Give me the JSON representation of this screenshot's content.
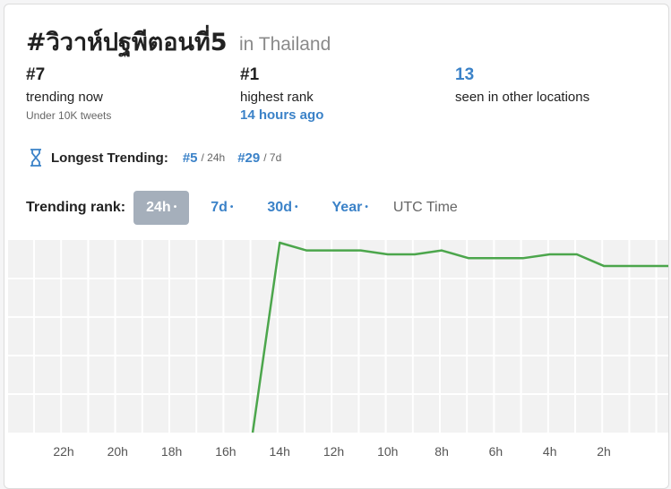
{
  "title": {
    "hashtag": "#วิวาห์ปฐพีตอนที่5",
    "location": "in Thailand"
  },
  "stats": {
    "trending_now": {
      "value": "#7",
      "label": "trending now",
      "sub": "Under 10K tweets"
    },
    "highest_rank": {
      "value": "#1",
      "label": "highest rank",
      "sub": "14 hours ago"
    },
    "other_locations": {
      "value": "13",
      "label": "seen in other locations"
    }
  },
  "longest": {
    "label": "Longest Trending:",
    "entries": [
      {
        "rank": "#5",
        "period": "/ 24h"
      },
      {
        "rank": "#29",
        "period": "/ 7d"
      }
    ]
  },
  "rank_tabs": {
    "label": "Trending rank:",
    "tabs": [
      {
        "label": "24h",
        "dot": "•",
        "active": true
      },
      {
        "label": "7d",
        "dot": "•",
        "active": false
      },
      {
        "label": "30d",
        "dot": "•",
        "active": false
      },
      {
        "label": "Year",
        "dot": "•",
        "active": false
      }
    ],
    "utc": "UTC Time"
  },
  "chart_data": {
    "type": "line",
    "xlabel": "",
    "ylabel": "",
    "x_ticks": [
      "22h",
      "20h",
      "18h",
      "16h",
      "14h",
      "12h",
      "10h",
      "8h",
      "6h",
      "4h",
      "2h"
    ],
    "x_range_hours_ago": [
      24,
      0
    ],
    "ylim": [
      1,
      50
    ],
    "y_inverted": true,
    "grid": true,
    "x": [
      15,
      14,
      13,
      12,
      11,
      10,
      9,
      8,
      7,
      6,
      5,
      4,
      3,
      2,
      1,
      0
    ],
    "values": [
      50,
      1,
      3,
      3,
      3,
      4,
      4,
      3,
      5,
      5,
      5,
      4,
      4,
      7,
      7,
      7
    ],
    "line_color": "#4ca64c"
  }
}
